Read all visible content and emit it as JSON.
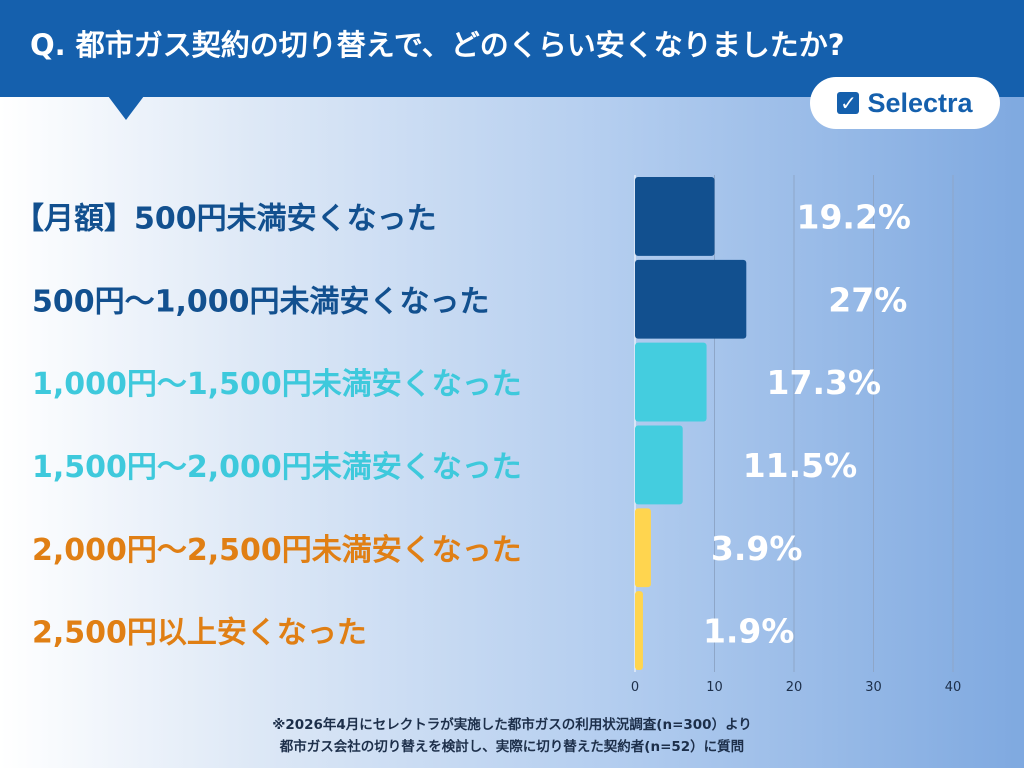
{
  "header": {
    "title": "Q. 都市ガス契約の切り替えで、どのくらい安くなりましたか?"
  },
  "logo": {
    "text": "Selectra",
    "icon": "checkbox-icon"
  },
  "chart_data": {
    "type": "bar",
    "orientation": "horizontal",
    "categories": [
      "【月額】500円未満安くなった",
      "500円〜1,000円未満安くなった",
      "1,000円〜1,500円未満安くなった",
      "1,500円〜2,000円未満安くなった",
      "2,000円〜2,500円未満安くなった",
      "2,500円以上安くなった"
    ],
    "values": [
      10,
      14,
      9,
      6,
      2,
      1
    ],
    "data_labels": [
      "19.2%",
      "27%",
      "17.3%",
      "11.5%",
      "3.9%",
      "1.9%"
    ],
    "xlim": [
      0,
      40
    ],
    "xticks": [
      "0",
      "10",
      "20",
      "30",
      "40"
    ],
    "grid": true,
    "bar_colors": [
      "#12508f",
      "#12508f",
      "#44cddf",
      "#44cddf",
      "#ffd54f",
      "#ffd54f"
    ],
    "label_colors": [
      "#12508f",
      "#12508f",
      "#3ec9dc",
      "#3ec9dc",
      "#e07f14",
      "#e07f14"
    ]
  },
  "footer": {
    "line1": "※2026年4月にセレクトラが実施した都市ガスの利用状況調査(n=300）より",
    "line2": "都市ガス会社の切り替えを検討し、実際に切り替えた契約者(n=52）に質問"
  }
}
